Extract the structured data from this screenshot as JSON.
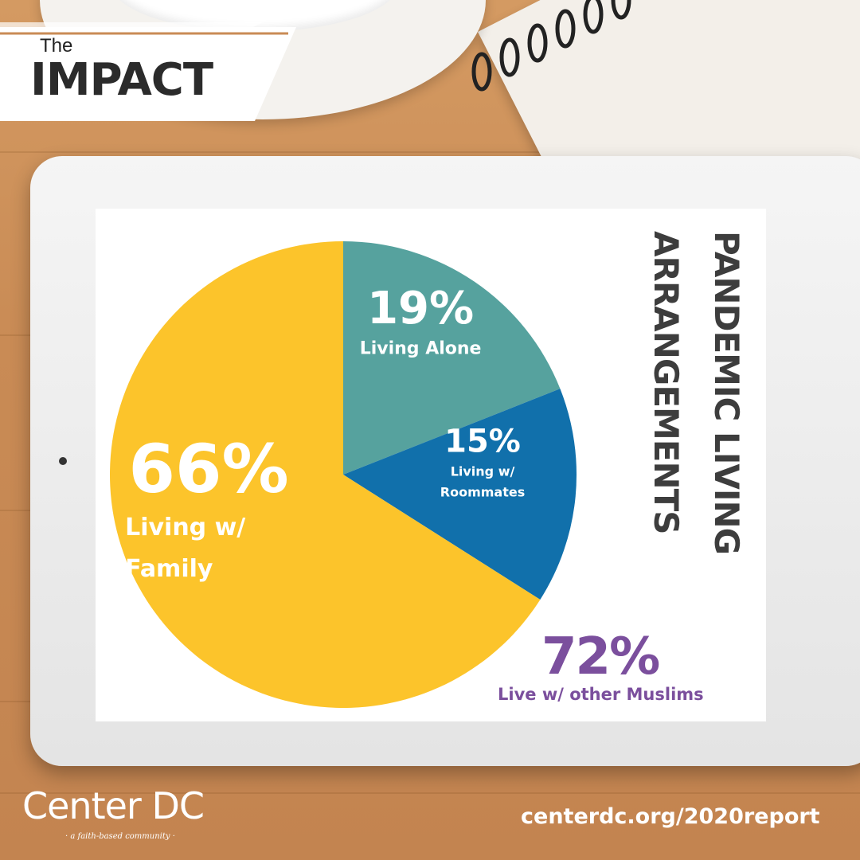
{
  "banner": {
    "the": "The",
    "impact": "IMPACT"
  },
  "title_lines": [
    "PANDEMIC LIVING",
    "ARRANGEMENTS"
  ],
  "chart_data": {
    "type": "pie",
    "title": "PANDEMIC LIVING ARRANGEMENTS",
    "slices": [
      {
        "value": 19,
        "pct_label": "19%",
        "lines": [
          "Living Alone"
        ],
        "color": "#56a29e"
      },
      {
        "value": 15,
        "pct_label": "15%",
        "lines": [
          "Living w/",
          "Roommates"
        ],
        "color": "#1170ab"
      },
      {
        "value": 66,
        "pct_label": "66%",
        "lines": [
          "Living w/",
          "Family"
        ],
        "color": "#fcc42b"
      }
    ]
  },
  "stat": {
    "value": "72%",
    "label": "Live w/ other Muslims",
    "color": "#7b4f9d"
  },
  "footer": {
    "brand": "Center DC",
    "tagline": "· a faith-based community ·",
    "url": "centerdc.org/2020report"
  }
}
